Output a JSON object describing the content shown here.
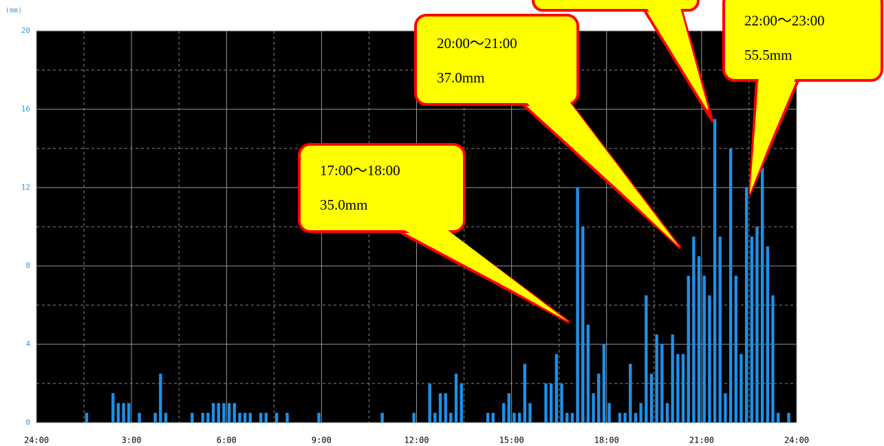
{
  "chart_data": {
    "type": "histogram",
    "y_unit": "(mm)",
    "bins": [
      0,
      10,
      20,
      30,
      40,
      50,
      60,
      70,
      80,
      90,
      100,
      110,
      120,
      130,
      140,
      150,
      160,
      170,
      180,
      190,
      200,
      210,
      220,
      230,
      240,
      250,
      260,
      270,
      280,
      290,
      300,
      310,
      320,
      330,
      340,
      350,
      360,
      370,
      380,
      390,
      400,
      410,
      420,
      430,
      440,
      450,
      460,
      470,
      480,
      490,
      500,
      510,
      520,
      530,
      540,
      550,
      560,
      570,
      580,
      590,
      600,
      610,
      620,
      630,
      640,
      650,
      660,
      670,
      680,
      690,
      700,
      710,
      720,
      730,
      740,
      750,
      760,
      770,
      780,
      790,
      800,
      810,
      820,
      830,
      840,
      850,
      860,
      870,
      880,
      890,
      900,
      910,
      920,
      930,
      940,
      950,
      960,
      970,
      980,
      990,
      1000,
      1010,
      1020,
      1030,
      1040,
      1050,
      1060,
      1070,
      1080,
      1090,
      1100,
      1110,
      1120,
      1130,
      1140,
      1150,
      1160,
      1170,
      1180,
      1190,
      1200,
      1210,
      1220,
      1230,
      1240,
      1250,
      1260,
      1270,
      1280,
      1290,
      1300,
      1310,
      1320,
      1330,
      1340,
      1350,
      1360,
      1370,
      1380,
      1390,
      1400,
      1410,
      1420,
      1430,
      1440
    ],
    "values": [
      0,
      0,
      0,
      0,
      0,
      0,
      0,
      0,
      0,
      0.5,
      0,
      0,
      0,
      0,
      1.5,
      1,
      1,
      1,
      0,
      0.5,
      0,
      0,
      0.5,
      2.5,
      0.5,
      0,
      0,
      0,
      0,
      0.5,
      0,
      0.5,
      0.5,
      1,
      1,
      1,
      1,
      1,
      0.5,
      0.5,
      0.5,
      0,
      0.5,
      0.5,
      0,
      0.5,
      0,
      0.5,
      0,
      0,
      0,
      0,
      0,
      0.5,
      0,
      0,
      0,
      0,
      0,
      0,
      0,
      0,
      0,
      0,
      0,
      0.5,
      0,
      0,
      0,
      0,
      0,
      0.5,
      0,
      0,
      2,
      0.5,
      1.5,
      1.5,
      0.5,
      2.5,
      2,
      0,
      0,
      0,
      0,
      0.5,
      0.5,
      0,
      1,
      1.5,
      0.5,
      0.5,
      3,
      1,
      0,
      0,
      2,
      2,
      3.5,
      2,
      0.5,
      0.5,
      12,
      10,
      5,
      1.5,
      2.5,
      4,
      1,
      0,
      0.5,
      0.5,
      3,
      0.5,
      1,
      6.5,
      2.5,
      4.5,
      4,
      1,
      4.5,
      3.5,
      3.5,
      7.5,
      9.5,
      8.5,
      7.5,
      6.5,
      15.5,
      9.5,
      1.5,
      14,
      7.5,
      3.5,
      12,
      9.5,
      10,
      13,
      9,
      6.5,
      0.5,
      0,
      0.5,
      0
    ],
    "color": "#1e90e8",
    "xlim": [
      0,
      1440
    ],
    "xticks": [
      {
        "value": 0,
        "label": "24:00"
      },
      {
        "value": 180,
        "label": "3:00"
      },
      {
        "value": 360,
        "label": "6:00"
      },
      {
        "value": 540,
        "label": "9:00"
      },
      {
        "value": 720,
        "label": "12:00"
      },
      {
        "value": 900,
        "label": "15:00"
      },
      {
        "value": 1080,
        "label": "18:00"
      },
      {
        "value": 1260,
        "label": "21:00"
      },
      {
        "value": 1440,
        "label": "24:00"
      }
    ],
    "xticks_minor": [
      90,
      270,
      450,
      630,
      810,
      990,
      1170,
      1350
    ],
    "ylim": [
      0,
      20
    ],
    "yticks": [
      0,
      4,
      8,
      12,
      16,
      20
    ],
    "yticks_minor": [
      2,
      6,
      10,
      14,
      18
    ],
    "grid": true,
    "annotations": [
      {
        "lines": [
          "17:00〜18:00",
          "35.0mm"
        ]
      },
      {
        "lines": [
          "20:00〜21:00",
          "37.0mm"
        ]
      },
      {
        "lines": [
          "22:00〜23:00",
          "55.5mm"
        ]
      }
    ]
  }
}
